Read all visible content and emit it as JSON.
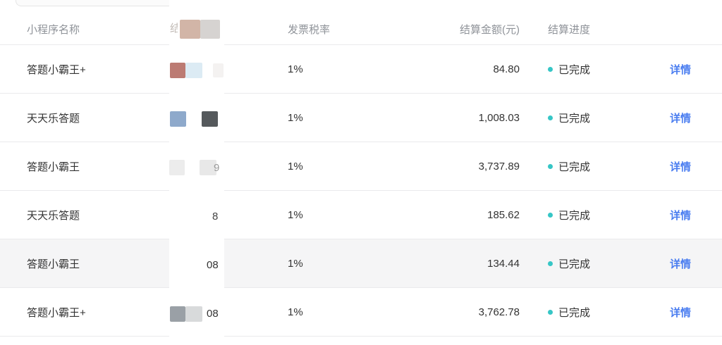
{
  "table": {
    "headers": {
      "name": "小程序名称",
      "settlement_no_partial": "结",
      "tax_rate": "发票税率",
      "amount": "结算金额(元)",
      "progress": "结算进度"
    },
    "rows": [
      {
        "name": "答题小霸王+",
        "no_visible": "",
        "tax_rate": "1%",
        "amount": "84.80",
        "status": "已完成",
        "action": "详情"
      },
      {
        "name": "天天乐答题",
        "no_visible": "",
        "tax_rate": "1%",
        "amount": "1,008.03",
        "status": "已完成",
        "action": "详情"
      },
      {
        "name": "答题小霸王",
        "no_visible": "9",
        "tax_rate": "1%",
        "amount": "3,737.89",
        "status": "已完成",
        "action": "详情"
      },
      {
        "name": "天天乐答题",
        "no_visible": "8",
        "tax_rate": "1%",
        "amount": "185.62",
        "status": "已完成",
        "action": "详情"
      },
      {
        "name": "答题小霸王",
        "no_visible": "08",
        "tax_rate": "1%",
        "amount": "134.44",
        "status": "已完成",
        "action": "详情"
      },
      {
        "name": "答题小霸王+",
        "no_visible": "08",
        "tax_rate": "1%",
        "amount": "3,762.78",
        "status": "已完成",
        "action": "详情"
      }
    ]
  },
  "colors": {
    "header_text": "#8f9399",
    "body_text": "#333333",
    "row_border": "#eaeaec",
    "highlight_row_bg": "#f5f5f6",
    "status_dot": "#36c6c6",
    "link": "#4a7df0",
    "redaction_patches": {
      "header": [
        "#d2b5a7",
        "#d6d3d1"
      ],
      "row1": [
        "#bc7b73",
        "#dcebf4"
      ],
      "row2": [
        "#8ea9cb",
        "#55595c"
      ],
      "row3": [
        "#ececec",
        "#e8e8e8"
      ],
      "row6": [
        "#9aa0a6",
        "#d8dadb"
      ]
    }
  }
}
